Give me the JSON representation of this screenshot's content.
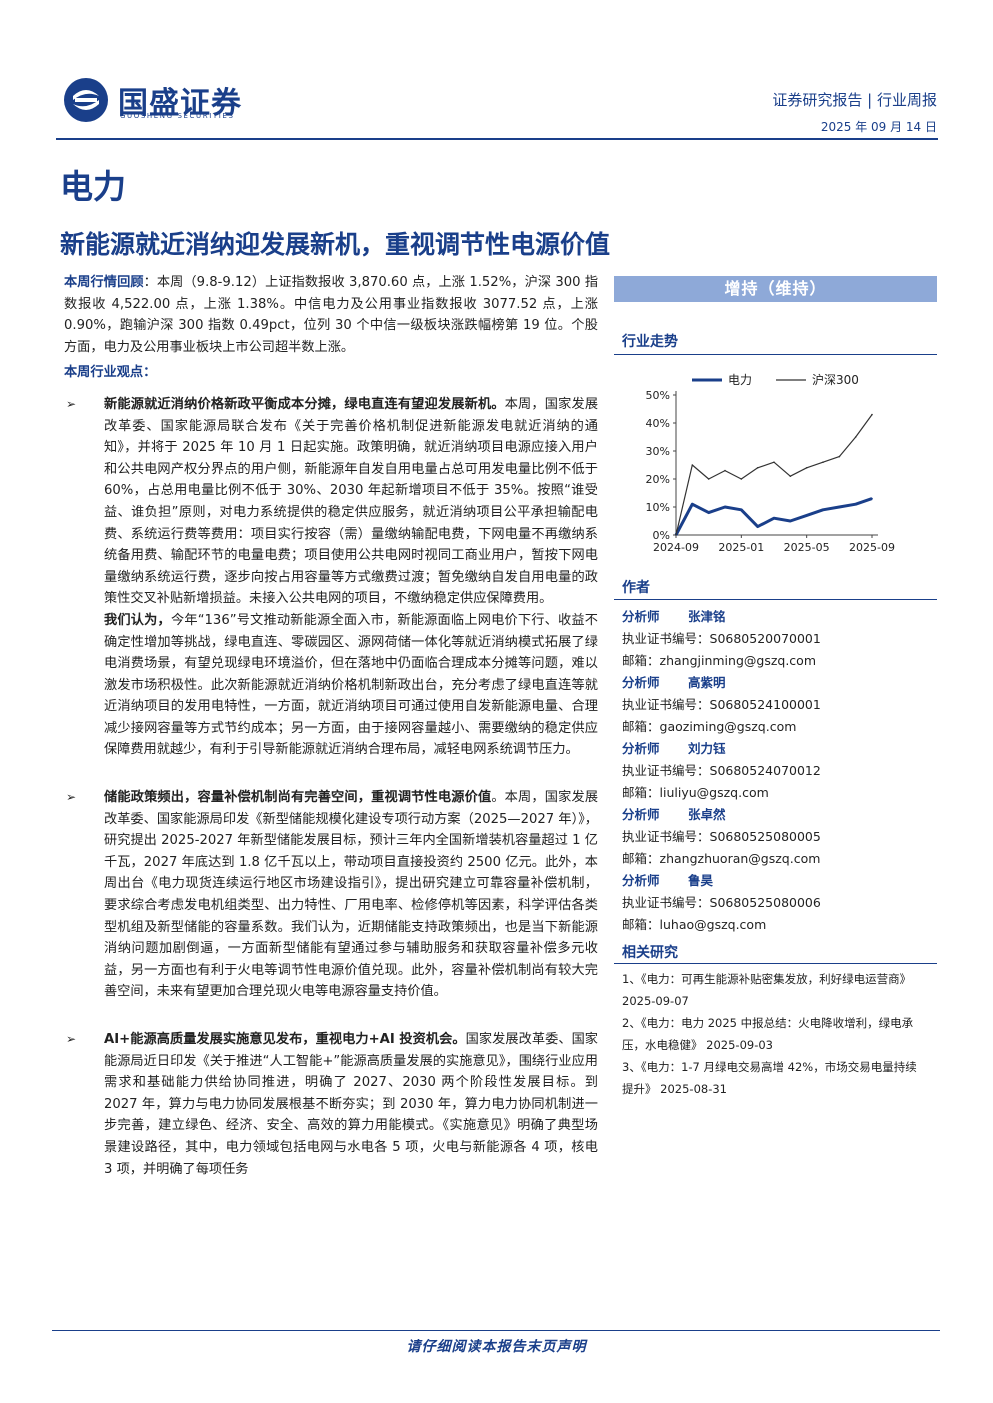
{
  "header": {
    "logo_cn": "国盛证券",
    "logo_en": "GUOSHENG SECURITIES",
    "report_type": "证券研究报告 | 行业周报",
    "date": "2025 年 09 月 14 日"
  },
  "industry": "电力",
  "headline": "新能源就近消纳迎发展新机，重视调节性电源价值",
  "review": {
    "label": "本周行情回顾",
    "text": "：本周（9.8-9.12）上证指数报收 3,870.60 点，上涨 1.52%，沪深 300 指数报收 4,522.00 点，上涨 1.38%。中信电力及公用事业指数报收 3077.52 点，上涨 0.90%，跑输沪深 300 指数 0.49pct，位列 30 个中信一级板块涨跌幅榜第 19 位。个股方面，电力及公用事业板块上市公司超半数上涨。"
  },
  "views_title": "本周行业观点：",
  "bullets": [
    {
      "lead": "新能源就近消纳价格新政平衡成本分摊，绿电直连有望迎发展新机。",
      "text": "本周，国家发展改革委、国家能源局联合发布《关于完善价格机制促进新能源发电就近消纳的通知》，并将于 2025 年 10 月 1 日起实施。政策明确，就近消纳项目电源应接入用户和公共电网产权分界点的用户侧，新能源年自发自用电量占总可用发电量比例不低于 60%，占总用电量比例不低于 30%、2030 年起新增项目不低于 35%。按照“谁受益、谁负担”原则，对电力系统提供的稳定供应服务，就近消纳项目公平承担输配电费、系统运行费等费用：项目实行按容（需）量缴纳输配电费，下网电量不再缴纳系统备用费、输配环节的电量电费；项目使用公共电网时视同工商业用户，暂按下网电量缴纳系统运行费，逐步向按占用容量等方式缴费过渡；暂免缴纳自发自用电量的政策性交叉补贴新增损益。未接入公共电网的项目，不缴纳稳定供应保障费用。",
      "lead2": "我们认为，",
      "text2": "今年“136”号文推动新能源全面入市，新能源面临上网电价下行、收益不确定性增加等挑战，绿电直连、零碳园区、源网荷储一体化等就近消纳模式拓展了绿电消费场景，有望兑现绿电环境溢价，但在落地中仍面临合理成本分摊等问题，难以激发市场积极性。此次新能源就近消纳价格机制新政出台，充分考虑了绿电直连等就近消纳项目的发用电特性，一方面，就近消纳项目可通过使用自发新能源电量、合理减少接网容量等方式节约成本；另一方面，由于接网容量越小、需要缴纳的稳定供应保障费用就越少，有利于引导新能源就近消纳合理布局，减轻电网系统调节压力。"
    },
    {
      "lead": "储能政策频出，容量补偿机制尚有完善空间，重视调节性电源价值",
      "text": "。本周，国家发展改革委、国家能源局印发《新型储能规模化建设专项行动方案（2025—2027 年）》，研究提出 2025-2027 年新型储能发展目标，预计三年内全国新增装机容量超过 1 亿千瓦，2027 年底达到 1.8 亿千瓦以上，带动项目直接投资约 2500 亿元。此外，本周出台《电力现货连续运行地区市场建设指引》，提出研究建立可靠容量补偿机制，要求综合考虑发电机组类型、出力特性、厂用电率、检修停机等因素，科学评估各类型机组及新型储能的容量系数。我们认为，近期储能支持政策频出，也是当下新能源消纳问题加剧倒逼，一方面新型储能有望通过参与辅助服务和获取容量补偿多元收益，另一方面也有利于火电等调节性电源价值兑现。此外，容量补偿机制尚有较大完善空间，未来有望更加合理兑现火电等电源容量支持价值。"
    },
    {
      "lead": "AI+能源高质量发展实施意见发布，重视电力+AI 投资机会。",
      "text": "国家发展改革委、国家能源局近日印发《关于推进“人工智能+”能源高质量发展的实施意见》，围绕行业应用需求和基础能力供给协同推进，明确了 2027、2030 两个阶段性发展目标。到 2027 年，算力与电力协同发展根基不断夯实；到 2030 年，算力电力协同机制进一步完善，建立绿色、经济、安全、高效的算力用能模式。《实施意见》明确了典型场景建设路径，其中，电力领域包括电网与水电各 5 项，火电与新能源各 4 项，核电 3 项，并明确了每项任务"
    }
  ],
  "sidebar": {
    "rating": "增持（维持）",
    "trend_title": "行业走势",
    "analysts_title": "作者",
    "analysts": [
      {
        "role": "分析师",
        "name": "张津铭",
        "cert_label": "执业证书编号：",
        "cert": "S0680520070001",
        "email_label": "邮箱：",
        "email": "zhangjinming@gszq.com"
      },
      {
        "role": "分析师",
        "name": "高紫明",
        "cert_label": "执业证书编号：",
        "cert": "S0680524100001",
        "email_label": "邮箱：",
        "email": "gaoziming@gszq.com"
      },
      {
        "role": "分析师",
        "name": "刘力钰",
        "cert_label": "执业证书编号：",
        "cert": "S0680524070012",
        "email_label": "邮箱：",
        "email": "liuliyu@gszq.com"
      },
      {
        "role": "分析师",
        "name": "张卓然",
        "cert_label": "执业证书编号：",
        "cert": "S0680525080005",
        "email_label": "邮箱：",
        "email": "zhangzhuoran@gszq.com"
      },
      {
        "role": "分析师",
        "name": "鲁昊",
        "cert_label": "执业证书编号：",
        "cert": "S0680525080006",
        "email_label": "邮箱：",
        "email": "luhao@gszq.com"
      }
    ],
    "related_title": "相关研究",
    "related": [
      "1、《电力：可再生能源补贴密集发放，利好绿电运营商》 2025-09-07",
      "2、《电力：电力 2025 中报总结：火电降收增利，绿电承压，水电稳健》 2025-09-03",
      "3、《电力：1-7 月绿电交易高增 42%，市场交易电量持续提升》 2025-08-31"
    ]
  },
  "footer": "请仔细阅读本报告末页声明",
  "colors": {
    "brand": "#1a3f8a",
    "rating_bg": "#8ea9d8"
  },
  "chart_data": {
    "type": "line",
    "title": "",
    "x": [
      "2024-09",
      "2024-10",
      "2024-11",
      "2024-12",
      "2025-01",
      "2025-02",
      "2025-03",
      "2025-04",
      "2025-05",
      "2025-06",
      "2025-07",
      "2025-08",
      "2025-09"
    ],
    "x_ticks": [
      "2024-09",
      "2025-01",
      "2025-05",
      "2025-09"
    ],
    "ylim": [
      0,
      50
    ],
    "y_ticks": [
      "0%",
      "10%",
      "20%",
      "30%",
      "40%",
      "50%"
    ],
    "legend_position": "top",
    "series": [
      {
        "name": "电力",
        "color": "#1a3f8a",
        "values": [
          0,
          11,
          8,
          10,
          9,
          3,
          6,
          5,
          7,
          9,
          10,
          11,
          13
        ]
      },
      {
        "name": "沪深300",
        "color": "#333333",
        "values": [
          0,
          25,
          20,
          23,
          20,
          24,
          26,
          21,
          24,
          26,
          28,
          35,
          43
        ]
      }
    ]
  }
}
